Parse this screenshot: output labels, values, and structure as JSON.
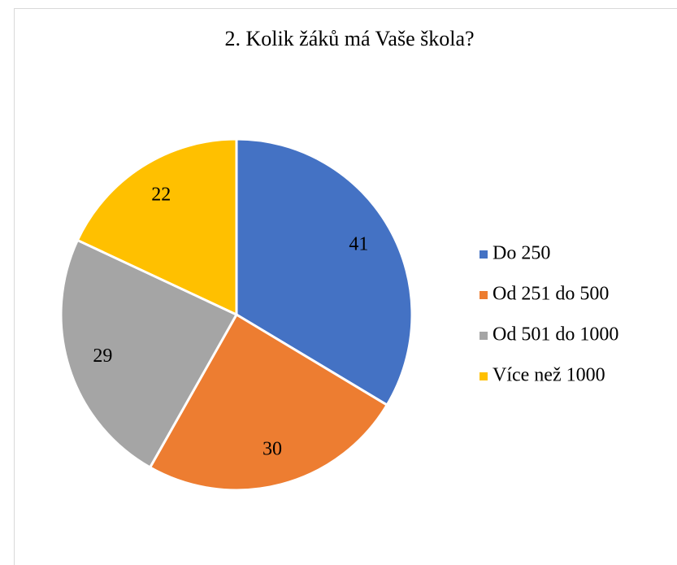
{
  "chart_data": {
    "type": "pie",
    "title": "2. Kolik žáků má Vaše škola?",
    "categories": [
      "Do 250",
      "Od 251 do 500",
      "Od 501 do 1000",
      "Více než 1000"
    ],
    "values": [
      41,
      30,
      29,
      22
    ],
    "colors": [
      "#4472c4",
      "#ed7d31",
      "#a5a5a5",
      "#ffc000"
    ],
    "legend": "right"
  }
}
